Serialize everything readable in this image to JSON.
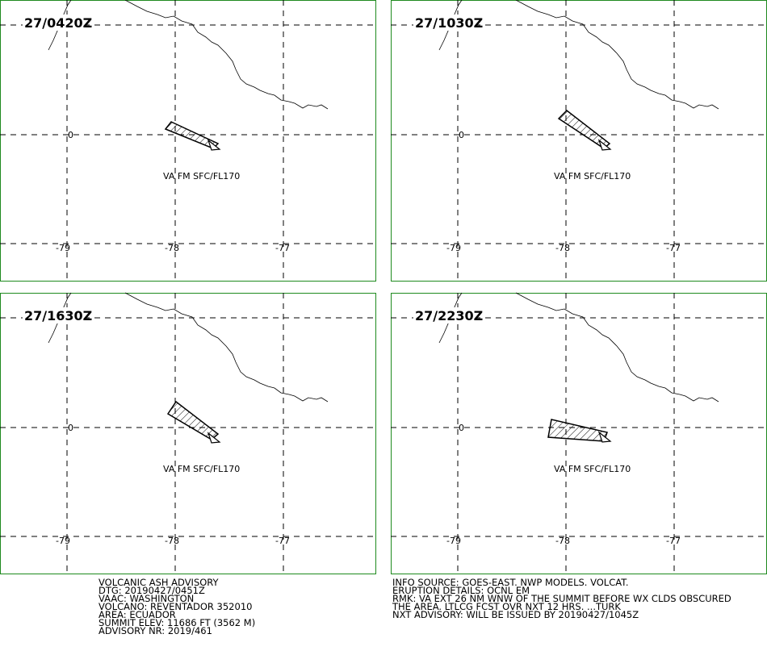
{
  "panels": [
    {
      "time": "27/0420Z",
      "lat_label": "0",
      "lon_labels": [
        "-79",
        "-78",
        "-77"
      ],
      "ash_label": "VA FM SFC/FL170"
    },
    {
      "time": "27/1030Z",
      "lat_label": "0",
      "lon_labels": [
        "-79",
        "-78",
        "-77"
      ],
      "ash_label": "VA FM SFC/FL170"
    },
    {
      "time": "27/1630Z",
      "lat_label": "0",
      "lon_labels": [
        "-79",
        "-78",
        "-77"
      ],
      "ash_label": "VA FM SFC/FL170"
    },
    {
      "time": "27/2230Z",
      "lat_label": "0",
      "lon_labels": [
        "-79",
        "-78",
        "-77"
      ],
      "ash_label": "VA FM SFC/FL170"
    }
  ],
  "advisory_left": [
    "VOLCANIC ASH ADVISORY",
    "DTG: 20190427/0451Z",
    "VAAC: WASHINGTON",
    "VOLCANO: REVENTADOR 352010",
    "AREA: ECUADOR",
    "SUMMIT ELEV: 11686 FT (3562 M)",
    "ADVISORY NR: 2019/461"
  ],
  "advisory_right": [
    "INFO SOURCE: GOES-EAST. NWP MODELS. VOLCAT.",
    "ERUPTION DETAILS: OCNL EM",
    "RMK: VA EXT 26 NM WNW OF THE SUMMIT BEFORE WX CLDS OBSCURED",
    "THE AREA. LTLCG FCST OVR NXT 12 HRS. ...TURK",
    "NXT ADVISORY: WILL BE ISSUED BY 20190427/1045Z"
  ]
}
